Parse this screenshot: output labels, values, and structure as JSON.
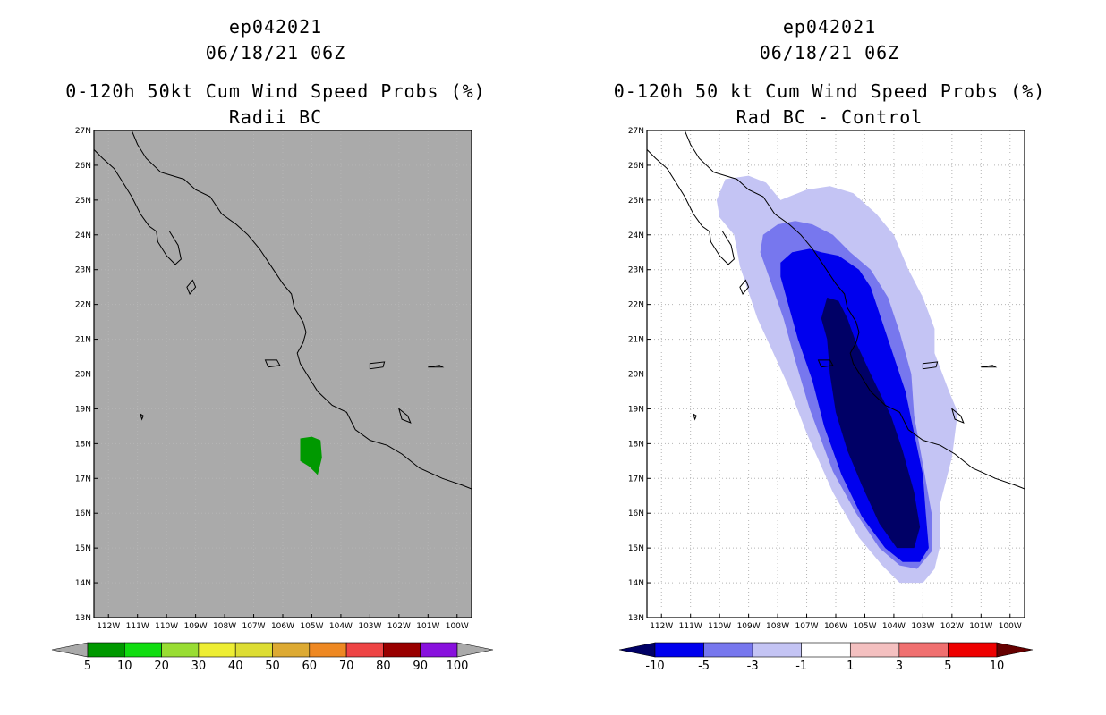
{
  "left": {
    "title": [
      "ep042021",
      "06/18/21 06Z",
      "0-120h 50kt Cum Wind Speed Probs (%)",
      "Radii BC"
    ],
    "colorbar": {
      "labels": [
        "5",
        "10",
        "20",
        "30",
        "40",
        "50",
        "60",
        "70",
        "80",
        "90",
        "100"
      ],
      "colors": [
        "#009900",
        "#11dd11",
        "#99dd33",
        "#eeee33",
        "#dddd33",
        "#ddaa33",
        "#ee8822",
        "#ee4444",
        "#990000",
        "#8811dd"
      ],
      "under_color": "#aaaaaa",
      "over_color": "#aaaaaa"
    },
    "background": "#aaaaaa",
    "regions": [
      {
        "level": "5-10",
        "color": "#009900",
        "polygon_lonlat": [
          [
            -105.4,
            18.15
          ],
          [
            -105.0,
            18.2
          ],
          [
            -104.7,
            18.1
          ],
          [
            -104.65,
            17.6
          ],
          [
            -104.8,
            17.1
          ],
          [
            -105.1,
            17.35
          ],
          [
            -105.4,
            17.5
          ]
        ]
      }
    ]
  },
  "right": {
    "title": [
      "ep042021",
      "06/18/21 06Z",
      "0-120h 50 kt Cum Wind Speed Probs (%)",
      "Rad BC - Control"
    ],
    "colorbar": {
      "labels": [
        "-10",
        "-5",
        "-3",
        "-1",
        "1",
        "3",
        "5",
        "10"
      ],
      "colors": [
        "#0000ee",
        "#7777ee",
        "#c4c4f4",
        "#ffffff",
        "#f4c0c0",
        "#f07070",
        "#ee0000"
      ],
      "under_color": "#000066",
      "over_color": "#660000"
    },
    "regions": [
      {
        "level": "-3..-1",
        "color": "#c4c4f4",
        "polygon_lonlat": [
          [
            -109.8,
            25.6
          ],
          [
            -109.0,
            25.7
          ],
          [
            -108.4,
            25.5
          ],
          [
            -107.9,
            25.0
          ],
          [
            -107.0,
            25.3
          ],
          [
            -106.2,
            25.4
          ],
          [
            -105.4,
            25.2
          ],
          [
            -104.6,
            24.6
          ],
          [
            -104.0,
            24.0
          ],
          [
            -103.5,
            23.0
          ],
          [
            -103.0,
            22.2
          ],
          [
            -102.6,
            21.3
          ],
          [
            -102.6,
            20.6
          ],
          [
            -102.1,
            19.5
          ],
          [
            -101.8,
            18.9
          ],
          [
            -102.0,
            17.6
          ],
          [
            -102.4,
            16.3
          ],
          [
            -102.4,
            15.1
          ],
          [
            -102.6,
            14.4
          ],
          [
            -103.0,
            14.0
          ],
          [
            -103.8,
            14.0
          ],
          [
            -104.4,
            14.5
          ],
          [
            -105.2,
            15.3
          ],
          [
            -106.1,
            16.6
          ],
          [
            -107.0,
            18.3
          ],
          [
            -107.6,
            19.6
          ],
          [
            -108.2,
            20.7
          ],
          [
            -108.7,
            21.6
          ],
          [
            -109.3,
            23.1
          ],
          [
            -109.5,
            24.0
          ],
          [
            -110.0,
            24.5
          ],
          [
            -110.1,
            25.0
          ]
        ]
      },
      {
        "level": "-5..-3",
        "color": "#7777ee",
        "polygon_lonlat": [
          [
            -108.5,
            24.0
          ],
          [
            -108.0,
            24.3
          ],
          [
            -107.4,
            24.4
          ],
          [
            -106.8,
            24.3
          ],
          [
            -106.1,
            24.0
          ],
          [
            -105.5,
            23.5
          ],
          [
            -104.8,
            23.0
          ],
          [
            -104.2,
            22.2
          ],
          [
            -103.8,
            21.2
          ],
          [
            -103.4,
            20.0
          ],
          [
            -103.3,
            18.8
          ],
          [
            -103.0,
            17.4
          ],
          [
            -102.7,
            16.0
          ],
          [
            -102.7,
            14.9
          ],
          [
            -103.2,
            14.4
          ],
          [
            -103.8,
            14.5
          ],
          [
            -104.5,
            15.0
          ],
          [
            -105.3,
            16.0
          ],
          [
            -106.1,
            17.2
          ],
          [
            -106.9,
            19.0
          ],
          [
            -107.4,
            20.4
          ],
          [
            -107.8,
            21.6
          ],
          [
            -108.3,
            22.8
          ],
          [
            -108.6,
            23.5
          ]
        ]
      },
      {
        "level": "-10..-5",
        "color": "#0000ee",
        "polygon_lonlat": [
          [
            -107.9,
            23.2
          ],
          [
            -107.5,
            23.5
          ],
          [
            -106.9,
            23.6
          ],
          [
            -106.5,
            23.5
          ],
          [
            -105.9,
            23.4
          ],
          [
            -105.2,
            23.0
          ],
          [
            -104.8,
            22.5
          ],
          [
            -104.4,
            21.5
          ],
          [
            -104.0,
            20.5
          ],
          [
            -103.6,
            19.5
          ],
          [
            -103.3,
            18.3
          ],
          [
            -103.0,
            17.1
          ],
          [
            -102.9,
            16.0
          ],
          [
            -102.8,
            15.0
          ],
          [
            -103.1,
            14.6
          ],
          [
            -103.7,
            14.6
          ],
          [
            -104.3,
            15.0
          ],
          [
            -105.1,
            15.9
          ],
          [
            -105.8,
            17.1
          ],
          [
            -106.4,
            18.5
          ],
          [
            -106.8,
            19.8
          ],
          [
            -107.3,
            21.0
          ],
          [
            -107.7,
            22.2
          ],
          [
            -107.9,
            22.8
          ]
        ]
      },
      {
        "level": "<-10",
        "color": "#000066",
        "polygon_lonlat": [
          [
            -106.3,
            22.2
          ],
          [
            -105.9,
            22.1
          ],
          [
            -105.6,
            21.6
          ],
          [
            -105.3,
            20.9
          ],
          [
            -104.8,
            20.0
          ],
          [
            -104.1,
            18.8
          ],
          [
            -103.7,
            17.8
          ],
          [
            -103.3,
            16.6
          ],
          [
            -103.1,
            15.6
          ],
          [
            -103.3,
            15.0
          ],
          [
            -103.9,
            15.0
          ],
          [
            -104.5,
            15.7
          ],
          [
            -105.1,
            16.8
          ],
          [
            -105.6,
            17.8
          ],
          [
            -106.0,
            18.9
          ],
          [
            -106.2,
            20.0
          ],
          [
            -106.3,
            21.0
          ],
          [
            -106.5,
            21.6
          ]
        ]
      }
    ]
  },
  "axes": {
    "lon_labels": [
      "112W",
      "111W",
      "110W",
      "109W",
      "108W",
      "107W",
      "106W",
      "105W",
      "104W",
      "103W",
      "102W",
      "101W",
      "100W"
    ],
    "lat_labels": [
      "27N",
      "26N",
      "25N",
      "24N",
      "23N",
      "22N",
      "21N",
      "20N",
      "19N",
      "18N",
      "17N",
      "16N",
      "15N",
      "14N",
      "13N"
    ]
  }
}
